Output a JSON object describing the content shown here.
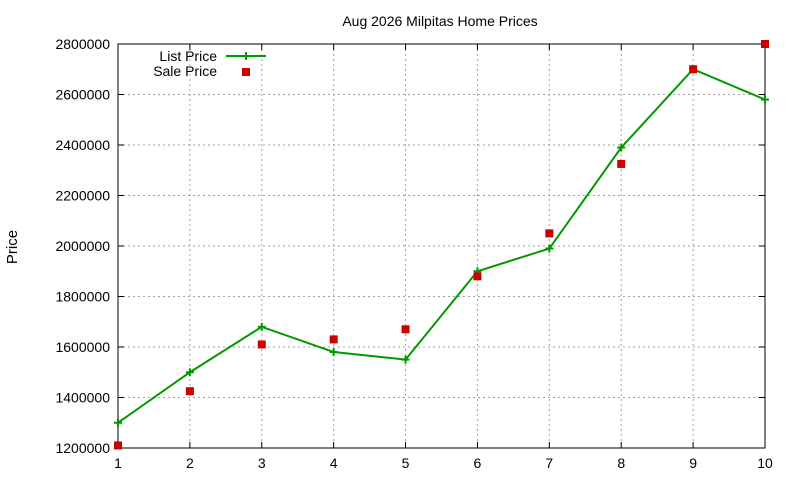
{
  "chart_data": {
    "type": "line",
    "title": "Aug 2026 Milpitas Home Prices",
    "xlabel": "",
    "ylabel": "Price",
    "x": [
      1,
      2,
      3,
      4,
      5,
      6,
      7,
      8,
      9,
      10
    ],
    "xlim": [
      1,
      10
    ],
    "ylim": [
      1200000,
      2800000
    ],
    "xticks": [
      "1",
      "2",
      "3",
      "4",
      "5",
      "6",
      "7",
      "8",
      "9",
      "10"
    ],
    "yticks": [
      "1200000",
      "1400000",
      "1600000",
      "1800000",
      "2000000",
      "2200000",
      "2400000",
      "2600000",
      "2800000"
    ],
    "grid": true,
    "legend_position": "top-left",
    "series": [
      {
        "name": "List Price",
        "style": "line-with-plus-markers",
        "color": "#009900",
        "values": [
          1300000,
          1500000,
          1680000,
          1580000,
          1550000,
          1900000,
          1990000,
          2390000,
          2700000,
          2580000
        ]
      },
      {
        "name": "Sale Price",
        "style": "square-markers",
        "color": "#cc0000",
        "values": [
          1210000,
          1425000,
          1610000,
          1630000,
          1670000,
          1880000,
          2050000,
          2325000,
          2700000,
          2800000
        ]
      }
    ]
  }
}
